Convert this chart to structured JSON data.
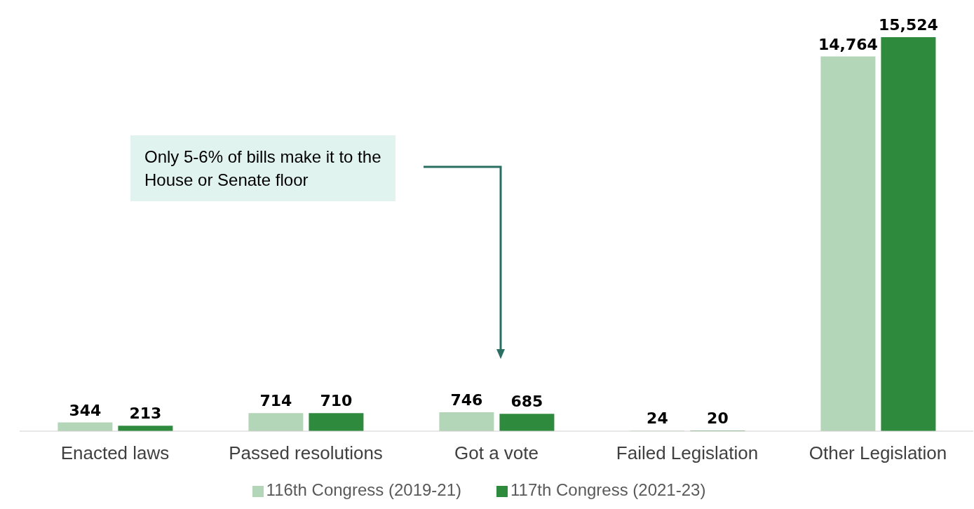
{
  "chart_data": {
    "type": "bar",
    "categories": [
      "Enacted laws",
      "Passed resolutions",
      "Got a vote",
      "Failed Legislation",
      "Other Legislation"
    ],
    "series": [
      {
        "name": "116th Congress (2019-21)",
        "color": "#b3d5b8",
        "values": [
          344,
          714,
          746,
          24,
          14764
        ],
        "value_labels": [
          "344",
          "714",
          "746",
          "24",
          "14,764"
        ]
      },
      {
        "name": "117th Congress (2021-23)",
        "color": "#2e8b3e",
        "values": [
          213,
          710,
          685,
          20,
          15524
        ],
        "value_labels": [
          "213",
          "710",
          "685",
          "20",
          "15,524"
        ]
      }
    ],
    "legend": "bottom",
    "grid": false,
    "annotations": [
      "Only 5-6% of bills make it to the House or Senate floor"
    ]
  }
}
